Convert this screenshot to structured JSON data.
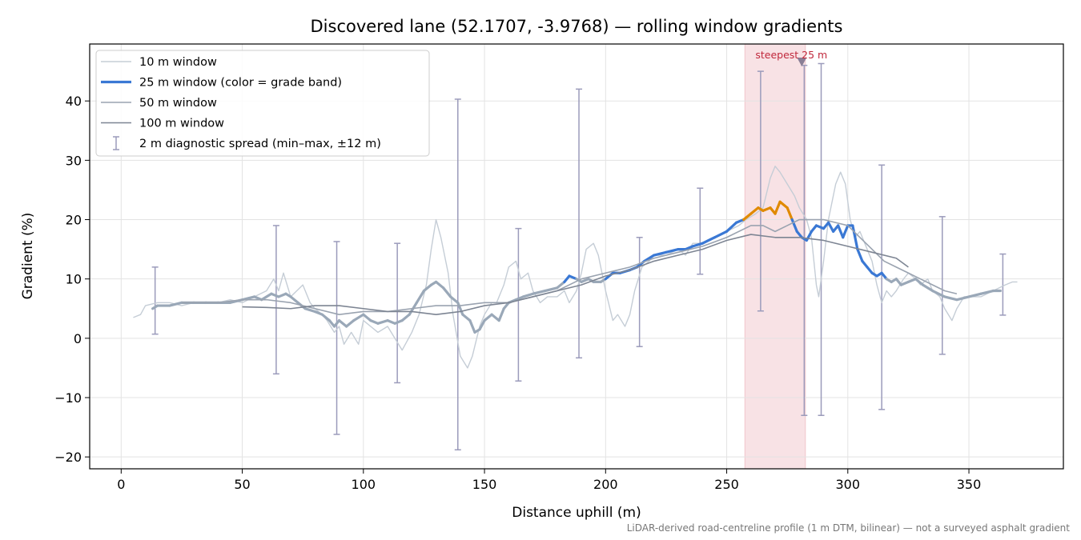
{
  "chart_data": {
    "type": "line",
    "title": "Discovered lane (52.1707, -3.9768) — rolling window gradients",
    "xlabel": "Distance uphill (m)",
    "ylabel": "Gradient (%)",
    "footnote": "LiDAR-derived road-centreline profile (1 m DTM, bilinear) — not a surveyed asphalt gradient",
    "xlim": [
      -13,
      389
    ],
    "ylim": [
      -22,
      49.6
    ],
    "xticks": [
      0,
      50,
      100,
      150,
      200,
      250,
      300,
      350
    ],
    "yticks": [
      {
        "value": -20,
        "label": "−20"
      },
      {
        "value": -10,
        "label": "−10"
      },
      0,
      10,
      20,
      30,
      40
    ],
    "grid": true,
    "legend": "upper left",
    "highlight": {
      "span": [
        257.5,
        282.5
      ],
      "color": "#e8a0a8"
    },
    "annotation": {
      "text": "steepest 25 m",
      "x": 281,
      "y": 46.5,
      "color": "#c0283c",
      "marker_color": "#8a7f96"
    },
    "grade_bands": {
      "thresholds": [
        10,
        20
      ],
      "colors": [
        "#9aa8b8",
        "#3a78d4",
        "#e08a00"
      ]
    },
    "series": [
      {
        "name": "10 m window",
        "color": "#c5cdd6",
        "x": [
          5,
          8,
          10,
          15,
          20,
          25,
          30,
          35,
          40,
          45,
          50,
          55,
          60,
          63,
          65,
          67,
          70,
          75,
          78,
          80,
          83,
          85,
          88,
          90,
          92,
          95,
          98,
          100,
          103,
          106,
          110,
          113,
          116,
          120,
          123,
          126,
          128,
          130,
          132,
          135,
          137,
          140,
          143,
          145,
          148,
          150,
          153,
          155,
          158,
          160,
          163,
          165,
          168,
          170,
          173,
          176,
          180,
          183,
          185,
          188,
          190,
          192,
          195,
          197,
          200,
          203,
          205,
          208,
          210,
          212,
          215,
          218,
          220,
          225,
          230,
          233,
          236,
          240,
          245,
          250,
          255,
          258,
          262,
          265,
          268,
          270,
          272,
          275,
          278,
          280,
          283,
          285,
          287,
          288,
          290,
          292,
          295,
          297,
          299,
          301,
          303,
          305,
          307,
          310,
          312,
          314,
          316,
          318,
          320,
          323,
          325,
          328,
          330,
          333,
          335,
          338,
          340,
          343,
          345,
          348,
          350,
          355,
          360,
          365,
          368,
          370
        ],
        "values": [
          3.5,
          4,
          5.5,
          6,
          6,
          5.5,
          6,
          6,
          6,
          6.5,
          6,
          7,
          8,
          10,
          8,
          11,
          7,
          9,
          6,
          5,
          4,
          3,
          1,
          2,
          -1,
          1,
          -1,
          3,
          2,
          1,
          2,
          0,
          -2,
          1,
          4,
          9,
          15,
          20,
          17,
          11,
          4,
          -3,
          -5,
          -3,
          2,
          4,
          6,
          6,
          9,
          12,
          13,
          10,
          11,
          8,
          6,
          7,
          7,
          8,
          6,
          8,
          11,
          15,
          16,
          14,
          8,
          3,
          4,
          2,
          4,
          8,
          12,
          13,
          14,
          14,
          15,
          14,
          16,
          16,
          17,
          18,
          19,
          20,
          21,
          22,
          27,
          29,
          28,
          26,
          24,
          22,
          20,
          17,
          9,
          7,
          13,
          20,
          26,
          28,
          26,
          20,
          17,
          18,
          16,
          13,
          9,
          6,
          8,
          7,
          8,
          10,
          11,
          10,
          9,
          10,
          8,
          7,
          5,
          3,
          5,
          7,
          7,
          7,
          8,
          9,
          9.5,
          9.5
        ]
      },
      {
        "name": "25 m window (color = grade band)",
        "color": "#3a78d4",
        "colored_by_grade": true,
        "x": [
          13,
          15,
          20,
          25,
          30,
          35,
          40,
          45,
          50,
          55,
          58,
          62,
          65,
          68,
          70,
          73,
          76,
          80,
          83,
          86,
          88,
          90,
          93,
          96,
          100,
          103,
          106,
          110,
          113,
          116,
          119,
          122,
          125,
          128,
          130,
          133,
          136,
          139,
          141,
          144,
          146,
          148,
          150,
          153,
          156,
          158,
          160,
          163,
          166,
          170,
          175,
          180,
          183,
          185,
          188,
          190,
          193,
          195,
          198,
          200,
          203,
          206,
          210,
          213,
          216,
          220,
          225,
          230,
          233,
          236,
          240,
          245,
          250,
          254,
          257,
          260,
          263,
          265,
          268,
          270,
          272,
          275,
          277,
          279,
          281,
          283,
          285,
          287,
          290,
          292,
          294,
          296,
          298,
          300,
          302,
          304,
          306,
          308,
          310,
          312,
          314,
          316,
          318,
          320,
          322,
          325,
          328,
          331,
          335,
          340,
          345,
          350,
          355,
          360,
          363
        ],
        "values": [
          5,
          5.5,
          5.5,
          6,
          6,
          6,
          6,
          6,
          6.5,
          7,
          6.5,
          7.5,
          7,
          7.5,
          7,
          6,
          5,
          4.5,
          4,
          3,
          2,
          3,
          2,
          3,
          4,
          3,
          2.5,
          3,
          2.5,
          3,
          4,
          6,
          8,
          9,
          9.5,
          8.5,
          7,
          6,
          4,
          3,
          1,
          1.5,
          3,
          4,
          3,
          5,
          6,
          6.5,
          7,
          7.5,
          8,
          8.5,
          9.5,
          10.5,
          10,
          9.5,
          10,
          9.5,
          9.5,
          10,
          11,
          11,
          11.5,
          12,
          13,
          14,
          14.5,
          15,
          15,
          15.5,
          16,
          17,
          18,
          19.5,
          20,
          21,
          22,
          21.5,
          22,
          21,
          23,
          22,
          20,
          18,
          17,
          16.5,
          18,
          19,
          18.5,
          19.5,
          18,
          19,
          17,
          19,
          19,
          15,
          13,
          12,
          11,
          10.5,
          11,
          10,
          9.5,
          10,
          9,
          9.5,
          10,
          9,
          8,
          7,
          6.5,
          7,
          7.5,
          8,
          8
        ]
      },
      {
        "name": "50 m window",
        "color": "#9aa3b0",
        "x": [
          25,
          40,
          50,
          60,
          70,
          80,
          90,
          100,
          110,
          120,
          130,
          140,
          150,
          160,
          170,
          180,
          190,
          200,
          210,
          220,
          230,
          240,
          250,
          260,
          265,
          270,
          275,
          280,
          285,
          290,
          295,
          300,
          305,
          310,
          315,
          320,
          325,
          330,
          335,
          340,
          345
        ],
        "values": [
          6,
          6,
          6.5,
          6.5,
          6,
          5,
          4,
          4.5,
          4.5,
          5,
          5.5,
          5.5,
          6,
          6,
          7,
          8,
          10,
          11,
          12,
          13.5,
          14.5,
          15.5,
          17,
          19,
          19,
          18,
          19,
          20,
          20,
          20,
          19.5,
          19,
          17,
          15,
          13,
          12,
          11,
          10,
          9,
          8,
          7.5
        ]
      },
      {
        "name": "100 m window",
        "color": "#7d8593",
        "x": [
          50,
          60,
          70,
          80,
          90,
          100,
          110,
          120,
          130,
          140,
          150,
          160,
          170,
          180,
          190,
          200,
          210,
          220,
          230,
          240,
          250,
          260,
          270,
          280,
          290,
          300,
          310,
          320,
          325
        ],
        "values": [
          5.3,
          5.2,
          5,
          5.5,
          5.5,
          5,
          4.5,
          4.5,
          4,
          4.5,
          5.5,
          6,
          7,
          8,
          9,
          10.5,
          11.5,
          13,
          14,
          15,
          16.5,
          17.5,
          17,
          17,
          16.5,
          15.5,
          14.5,
          13.5,
          12
        ]
      }
    ],
    "errorbars": {
      "name": "2 m diagnostic spread (min–max, ±12 m)",
      "color": "#9b9bbb",
      "x": [
        14,
        64,
        89,
        114,
        139,
        164,
        189,
        214,
        239,
        264,
        282,
        289,
        314,
        339,
        364
      ],
      "low": [
        0.7,
        -6,
        -16.2,
        -7.5,
        -18.8,
        -7.2,
        -3.3,
        -1.4,
        10.8,
        4.6,
        -13,
        -13,
        -12,
        -2.7,
        3.9
      ],
      "high": [
        12,
        19,
        16.3,
        16,
        40.3,
        18.5,
        42,
        17,
        25.3,
        45,
        46,
        46.3,
        29.2,
        20.5,
        14.2
      ]
    }
  }
}
